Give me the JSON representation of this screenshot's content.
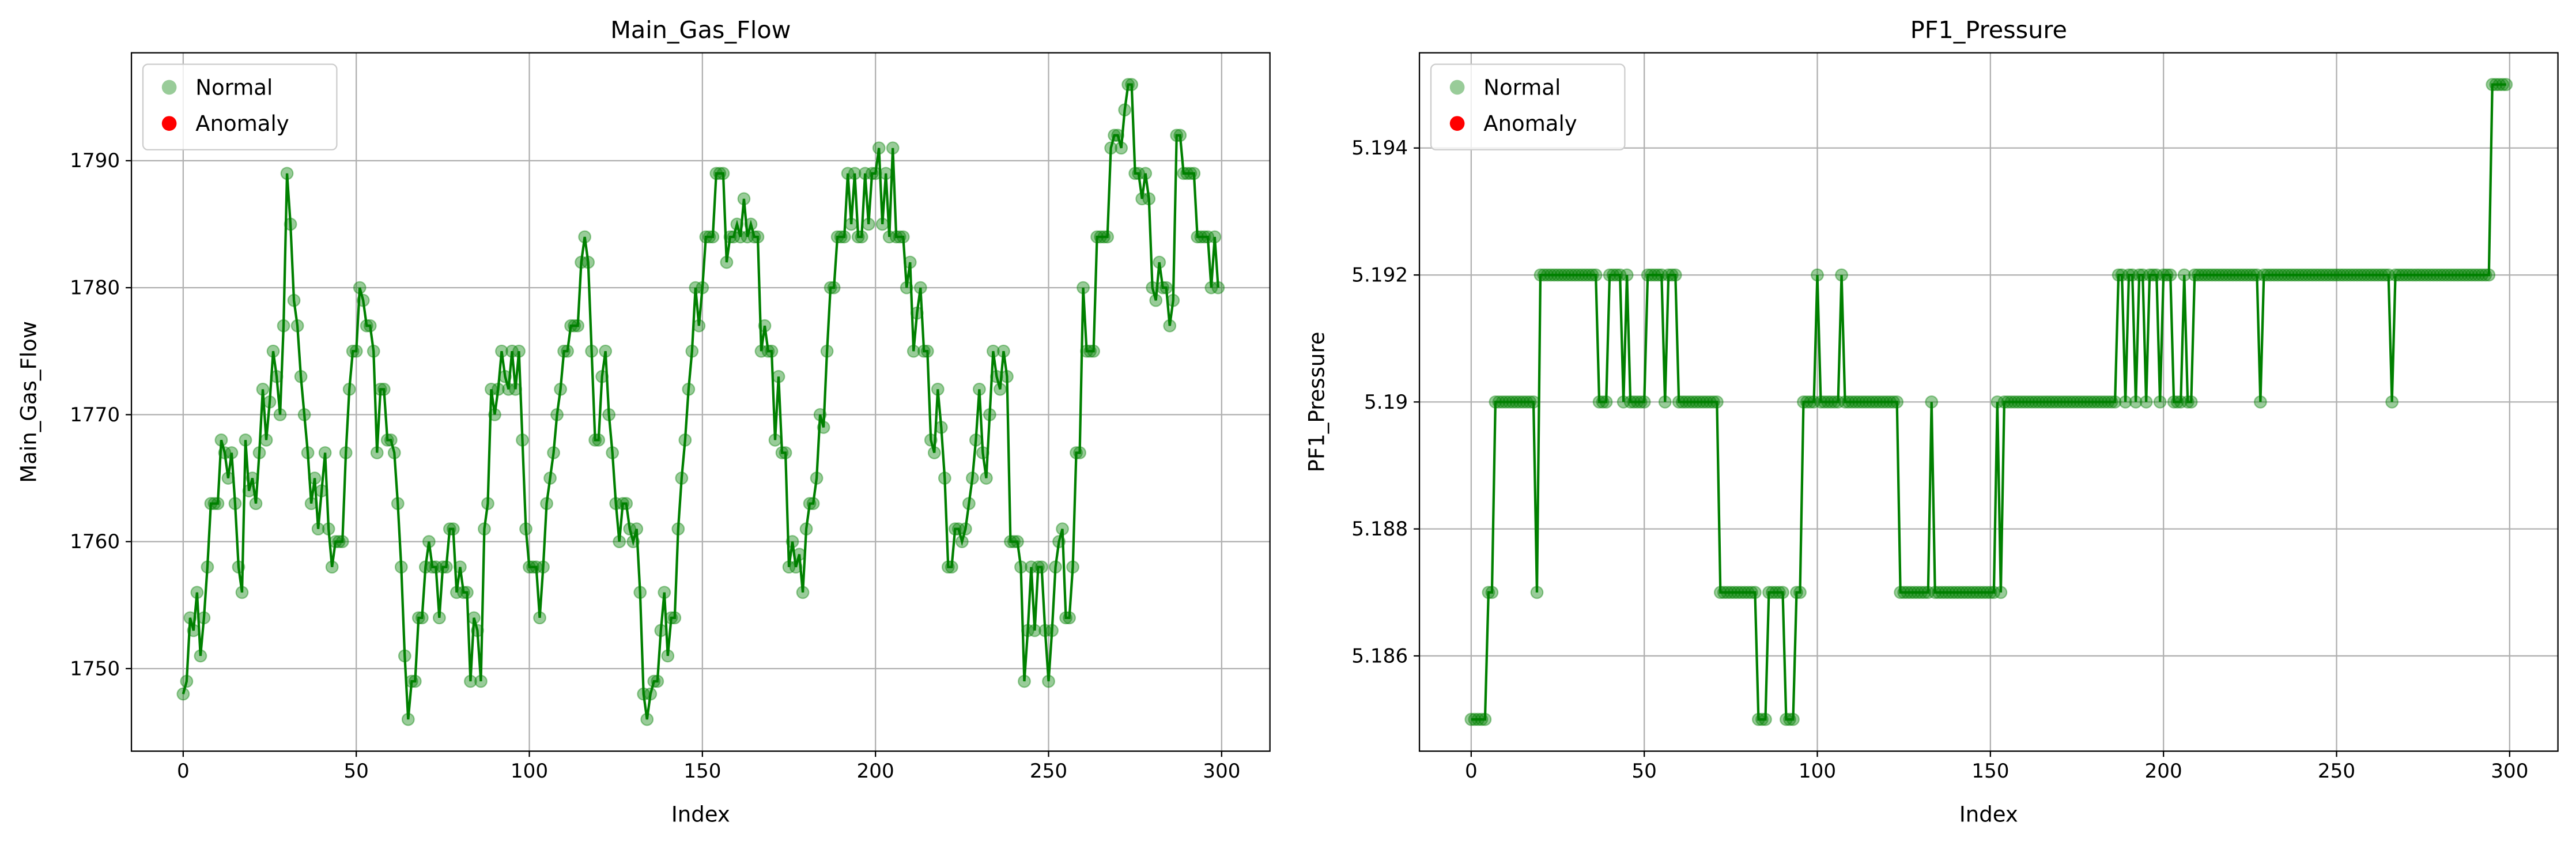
{
  "chart_data": [
    {
      "type": "line",
      "title": "Main_Gas_Flow",
      "xlabel": "Index",
      "ylabel": "Main_Gas_Flow",
      "xlim": [
        -14.95,
        313.95
      ],
      "ylim": [
        1743.5,
        1798.5
      ],
      "xticks": [
        0,
        50,
        100,
        150,
        200,
        250,
        300
      ],
      "yticks": [
        1750,
        1760,
        1770,
        1780,
        1790
      ],
      "grid": true,
      "legend": "upper left",
      "series": [
        {
          "name": "Normal",
          "color": "#008000",
          "values": [
            1748,
            1749,
            1754,
            1753,
            1756,
            1751,
            1754,
            1758,
            1763,
            1763,
            1763,
            1768,
            1767,
            1765,
            1767,
            1763,
            1758,
            1756,
            1768,
            1764,
            1765,
            1763,
            1767,
            1772,
            1768,
            1771,
            1775,
            1773,
            1770,
            1777,
            1789,
            1785,
            1779,
            1777,
            1773,
            1770,
            1767,
            1763,
            1765,
            1761,
            1764,
            1767,
            1761,
            1758,
            1760,
            1760,
            1760,
            1767,
            1772,
            1775,
            1775,
            1780,
            1779,
            1777,
            1777,
            1775,
            1767,
            1772,
            1772,
            1768,
            1768,
            1767,
            1763,
            1758,
            1751,
            1746,
            1749,
            1749,
            1754,
            1754,
            1758,
            1760,
            1758,
            1758,
            1754,
            1758,
            1758,
            1761,
            1761,
            1756,
            1758,
            1756,
            1756,
            1749,
            1754,
            1753,
            1749,
            1761,
            1763,
            1772,
            1770,
            1772,
            1775,
            1773,
            1772,
            1775,
            1772,
            1775,
            1768,
            1761,
            1758,
            1758,
            1758,
            1754,
            1758,
            1763,
            1765,
            1767,
            1770,
            1772,
            1775,
            1775,
            1777,
            1777,
            1777,
            1782,
            1784,
            1782,
            1775,
            1768,
            1768,
            1773,
            1775,
            1770,
            1767,
            1763,
            1760,
            1763,
            1763,
            1761,
            1760,
            1761,
            1756,
            1748,
            1746,
            1748,
            1749,
            1749,
            1753,
            1756,
            1751,
            1754,
            1754,
            1761,
            1765,
            1768,
            1772,
            1775,
            1780,
            1777,
            1780,
            1784,
            1784,
            1784,
            1789,
            1789,
            1789,
            1782,
            1784,
            1784,
            1785,
            1784,
            1787,
            1784,
            1785,
            1784,
            1784,
            1775,
            1777,
            1775,
            1775,
            1768,
            1773,
            1767,
            1767,
            1758,
            1760,
            1758,
            1759,
            1756,
            1761,
            1763,
            1763,
            1765,
            1770,
            1769,
            1775,
            1780,
            1780,
            1784,
            1784,
            1784,
            1789,
            1785,
            1789,
            1784,
            1784,
            1789,
            1785,
            1789,
            1789,
            1791,
            1785,
            1789,
            1784,
            1791,
            1784,
            1784,
            1784,
            1780,
            1782,
            1775,
            1778,
            1780,
            1775,
            1775,
            1768,
            1767,
            1772,
            1769,
            1765,
            1758,
            1758,
            1761,
            1761,
            1760,
            1761,
            1763,
            1765,
            1768,
            1772,
            1767,
            1765,
            1770,
            1775,
            1773,
            1772,
            1775,
            1773,
            1760,
            1760,
            1760,
            1758,
            1749,
            1753,
            1758,
            1753,
            1758,
            1758,
            1753,
            1749,
            1753,
            1758,
            1760,
            1761,
            1754,
            1754,
            1758,
            1767,
            1767,
            1780,
            1775,
            1775,
            1775,
            1784,
            1784,
            1784,
            1784,
            1791,
            1792,
            1792,
            1791,
            1794,
            1796,
            1796,
            1789,
            1789,
            1787,
            1789,
            1787,
            1780,
            1779,
            1782,
            1780,
            1780,
            1777,
            1779,
            1792,
            1792,
            1789,
            1789,
            1789,
            1789,
            1784,
            1784,
            1784,
            1784,
            1780,
            1784,
            1780
          ]
        },
        {
          "name": "Anomaly",
          "color": "#ff0000",
          "values": []
        }
      ]
    },
    {
      "type": "line",
      "title": "PF1_Pressure",
      "xlabel": "Index",
      "ylabel": "PF1_Pressure",
      "xlim": [
        -14.95,
        313.95
      ],
      "ylim": [
        5.1845,
        5.1955
      ],
      "xticks": [
        0,
        50,
        100,
        150,
        200,
        250,
        300
      ],
      "yticks": [
        5.186,
        5.188,
        5.19,
        5.192,
        5.194
      ],
      "grid": true,
      "legend": "upper left",
      "series": [
        {
          "name": "Normal",
          "color": "#008000",
          "values": [
            5.185,
            5.185,
            5.185,
            5.185,
            5.185,
            5.187,
            5.187,
            5.19,
            5.19,
            5.19,
            5.19,
            5.19,
            5.19,
            5.19,
            5.19,
            5.19,
            5.19,
            5.19,
            5.19,
            5.187,
            5.192,
            5.192,
            5.192,
            5.192,
            5.192,
            5.192,
            5.192,
            5.192,
            5.192,
            5.192,
            5.192,
            5.192,
            5.192,
            5.192,
            5.192,
            5.192,
            5.192,
            5.19,
            5.19,
            5.19,
            5.192,
            5.192,
            5.192,
            5.192,
            5.19,
            5.192,
            5.19,
            5.19,
            5.19,
            5.19,
            5.19,
            5.192,
            5.192,
            5.192,
            5.192,
            5.192,
            5.19,
            5.192,
            5.192,
            5.192,
            5.19,
            5.19,
            5.19,
            5.19,
            5.19,
            5.19,
            5.19,
            5.19,
            5.19,
            5.19,
            5.19,
            5.19,
            5.187,
            5.187,
            5.187,
            5.187,
            5.187,
            5.187,
            5.187,
            5.187,
            5.187,
            5.187,
            5.187,
            5.185,
            5.185,
            5.185,
            5.187,
            5.187,
            5.187,
            5.187,
            5.187,
            5.185,
            5.185,
            5.185,
            5.187,
            5.187,
            5.19,
            5.19,
            5.19,
            5.19,
            5.192,
            5.19,
            5.19,
            5.19,
            5.19,
            5.19,
            5.19,
            5.192,
            5.19,
            5.19,
            5.19,
            5.19,
            5.19,
            5.19,
            5.19,
            5.19,
            5.19,
            5.19,
            5.19,
            5.19,
            5.19,
            5.19,
            5.19,
            5.19,
            5.187,
            5.187,
            5.187,
            5.187,
            5.187,
            5.187,
            5.187,
            5.187,
            5.187,
            5.19,
            5.187,
            5.187,
            5.187,
            5.187,
            5.187,
            5.187,
            5.187,
            5.187,
            5.187,
            5.187,
            5.187,
            5.187,
            5.187,
            5.187,
            5.187,
            5.187,
            5.187,
            5.187,
            5.19,
            5.187,
            5.19,
            5.19,
            5.19,
            5.19,
            5.19,
            5.19,
            5.19,
            5.19,
            5.19,
            5.19,
            5.19,
            5.19,
            5.19,
            5.19,
            5.19,
            5.19,
            5.19,
            5.19,
            5.19,
            5.19,
            5.19,
            5.19,
            5.19,
            5.19,
            5.19,
            5.19,
            5.19,
            5.19,
            5.19,
            5.19,
            5.19,
            5.19,
            5.19,
            5.192,
            5.192,
            5.19,
            5.192,
            5.192,
            5.19,
            5.192,
            5.192,
            5.19,
            5.192,
            5.192,
            5.192,
            5.19,
            5.192,
            5.192,
            5.192,
            5.19,
            5.19,
            5.19,
            5.192,
            5.19,
            5.19,
            5.192,
            5.192,
            5.192,
            5.192,
            5.192,
            5.192,
            5.192,
            5.192,
            5.192,
            5.192,
            5.192,
            5.192,
            5.192,
            5.192,
            5.192,
            5.192,
            5.192,
            5.192,
            5.192,
            5.19,
            5.192,
            5.192,
            5.192,
            5.192,
            5.192,
            5.192,
            5.192,
            5.192,
            5.192,
            5.192,
            5.192,
            5.192,
            5.192,
            5.192,
            5.192,
            5.192,
            5.192,
            5.192,
            5.192,
            5.192,
            5.192,
            5.192,
            5.192,
            5.192,
            5.192,
            5.192,
            5.192,
            5.192,
            5.192,
            5.192,
            5.192,
            5.192,
            5.192,
            5.192,
            5.192,
            5.192,
            5.192,
            5.19,
            5.192,
            5.192,
            5.192,
            5.192,
            5.192,
            5.192,
            5.192,
            5.192,
            5.192,
            5.192,
            5.192,
            5.192,
            5.192,
            5.192,
            5.192,
            5.192,
            5.192,
            5.192,
            5.192,
            5.192,
            5.192,
            5.192,
            5.192,
            5.192,
            5.192,
            5.192,
            5.192,
            5.192,
            5.195,
            5.195,
            5.195,
            5.195,
            5.195
          ]
        },
        {
          "name": "Anomaly",
          "color": "#ff0000",
          "values": []
        }
      ]
    }
  ]
}
